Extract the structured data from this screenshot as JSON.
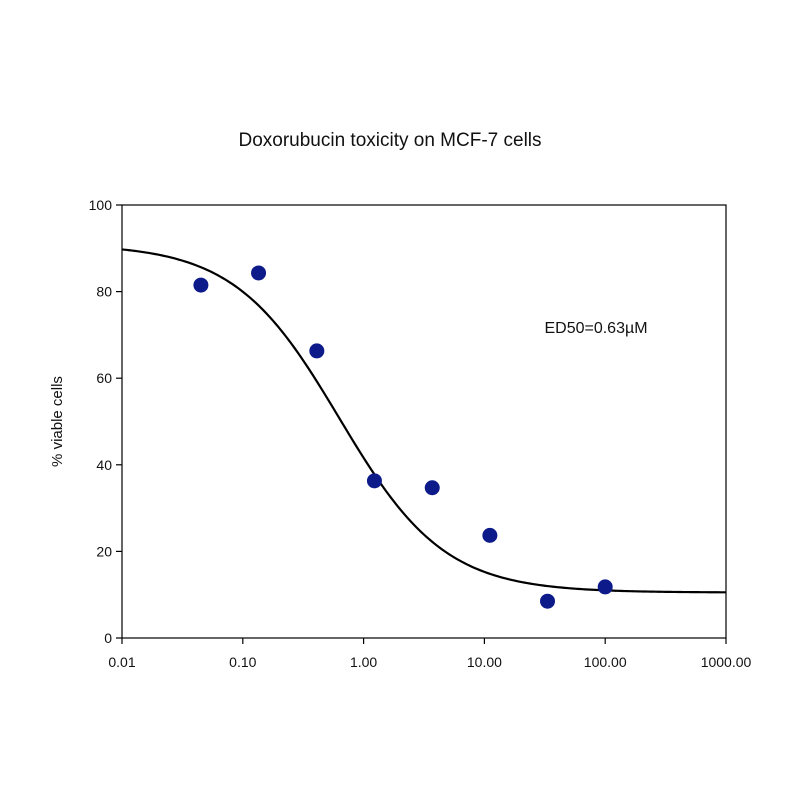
{
  "chart_data": {
    "type": "scatter",
    "title": "Doxorubucin toxicity on MCF-7 cells",
    "xlabel": "",
    "ylabel": "% viable cells",
    "x_scale": "log",
    "xlim": [
      0.01,
      1000
    ],
    "ylim": [
      0,
      100
    ],
    "x_ticks": [
      0.01,
      0.1,
      1,
      10,
      100,
      1000
    ],
    "x_tick_labels": [
      "0.01",
      "0.10",
      "1.00",
      "10.00",
      "100.00",
      "1000.00"
    ],
    "y_ticks": [
      0,
      20,
      40,
      60,
      80,
      100
    ],
    "y_tick_labels": [
      "0",
      "20",
      "40",
      "60",
      "80",
      "100"
    ],
    "grid": false,
    "annotation": "ED50=0.63µM",
    "points": {
      "x": [
        0.045,
        0.135,
        0.41,
        1.23,
        3.7,
        11.1,
        33.3,
        100
      ],
      "y": [
        81.5,
        84.3,
        66.3,
        36.3,
        34.7,
        23.7,
        8.5,
        11.8
      ],
      "color": "#0d1a8a"
    },
    "fit": {
      "model": "4-parameter logistic",
      "top": 91,
      "bottom": 10.5,
      "ec50": 0.63,
      "hill": 1.0,
      "color": "#000000"
    }
  }
}
